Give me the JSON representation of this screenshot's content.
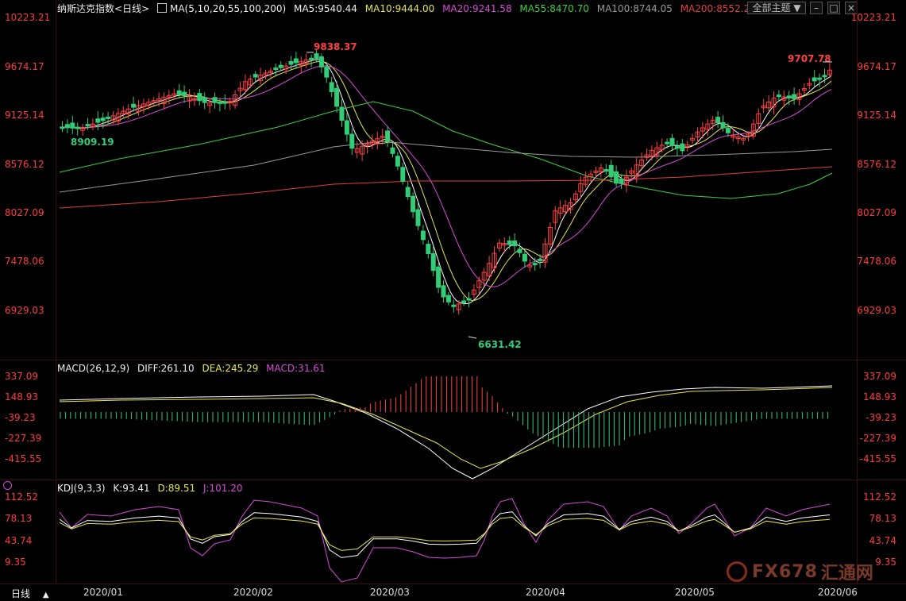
{
  "main": {
    "title": "纳斯达克指数",
    "period_selector": "<日线>",
    "ma_params": "MA(5,10,20,55,100,200)",
    "ma5": "MA5:9540.44",
    "ma10": "MA10:9444.00",
    "ma20": "MA20:9241.58",
    "ma55": "MA55:8470.70",
    "ma100": "MA100:8744.05",
    "ma200": "MA200:8552.2",
    "y_ticks": [
      "10223.21",
      "9674.17",
      "9125.14",
      "8576.12",
      "8027.09",
      "7478.06",
      "6929.03"
    ],
    "high_label": "9838.37",
    "low_label": "6631.42",
    "last_high_label": "9707.78",
    "left_label": "8909.19",
    "theme_dropdown": "全部主题",
    "colors": {
      "ma5": "#ffffff",
      "ma10": "#e8e84a",
      "ma20": "#d84ad8",
      "ma55": "#3fd03f",
      "ma100": "#9a9a9a",
      "ma200": "#e04040",
      "up": "#ff4040",
      "down": "#33cc77"
    }
  },
  "macd": {
    "params": "MACD(26,12,9)",
    "diff": "DIFF:261.10",
    "dea": "DEA:245.29",
    "macd": "MACD:31.61",
    "y_ticks": [
      "337.09",
      "148.93",
      "-39.23",
      "-227.39",
      "-415.55"
    ]
  },
  "kdj": {
    "params": "KDJ(9,3,3)",
    "k": "K:93.41",
    "d": "D:89.51",
    "j": "J:101.20",
    "y_ticks": [
      "112.52",
      "78.13",
      "43.74",
      "9.35"
    ]
  },
  "footer": {
    "period": "日线",
    "dates": [
      "2020/01",
      "2020/02",
      "2020/03",
      "2020/04",
      "2020/05",
      "2020/06"
    ]
  },
  "watermark": {
    "text": "FX678"
  }
}
